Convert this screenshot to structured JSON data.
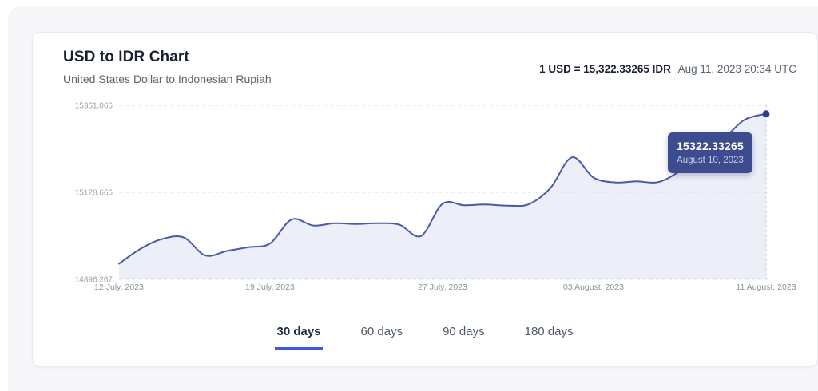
{
  "header": {
    "title": "USD to IDR Chart",
    "subtitle": "United States Dollar to Indonesian Rupiah",
    "rate_bold": "1 USD = 15,322.33265 IDR",
    "rate_date": "Aug 11, 2023 20:34 UTC"
  },
  "tooltip": {
    "value": "15322.33265",
    "date": "August 10, 2023"
  },
  "tabs": [
    {
      "label": "30 days",
      "active": true
    },
    {
      "label": "60 days",
      "active": false
    },
    {
      "label": "90 days",
      "active": false
    },
    {
      "label": "180 days",
      "active": false
    }
  ],
  "chart_data": {
    "type": "area",
    "title": "USD to IDR Chart",
    "series_name": "USD/IDR",
    "x": [
      "2023-07-12",
      "2023-07-13",
      "2023-07-14",
      "2023-07-15",
      "2023-07-16",
      "2023-07-17",
      "2023-07-18",
      "2023-07-19",
      "2023-07-20",
      "2023-07-21",
      "2023-07-22",
      "2023-07-23",
      "2023-07-24",
      "2023-07-25",
      "2023-07-26",
      "2023-07-27",
      "2023-07-28",
      "2023-07-29",
      "2023-07-30",
      "2023-07-31",
      "2023-08-01",
      "2023-08-02",
      "2023-08-03",
      "2023-08-04",
      "2023-08-05",
      "2023-08-06",
      "2023-08-07",
      "2023-08-08",
      "2023-08-09",
      "2023-08-10",
      "2023-08-11"
    ],
    "values": [
      14938,
      14978,
      15004,
      15008,
      14960,
      14972,
      14982,
      14992,
      15056,
      15040,
      15046,
      15044,
      15046,
      15042,
      15012,
      15098,
      15094,
      15096,
      15093,
      15097,
      15140,
      15222,
      15168,
      15155,
      15158,
      15156,
      15185,
      15228,
      15270,
      15322.33265,
      15338
    ],
    "ylim": [
      14896.267,
      15361.066
    ],
    "yticks": [
      {
        "value": 15361.066,
        "label": "15361.066"
      },
      {
        "value": 15128.666,
        "label": "15128.666"
      },
      {
        "value": 14896.267,
        "label": "14896.267"
      }
    ],
    "xticks": [
      {
        "index": 0,
        "label": "12 July, 2023"
      },
      {
        "index": 7,
        "label": "19 July, 2023"
      },
      {
        "index": 15,
        "label": "27 July, 2023"
      },
      {
        "index": 22,
        "label": "03 August, 2023"
      },
      {
        "index": 30,
        "label": "11 August, 2023"
      }
    ],
    "grid": true,
    "legend": "none",
    "colors": {
      "line": "#4a5aa5",
      "fill": "#edeff8",
      "dot": "#2e3f8f",
      "grid": "#d9dce3",
      "vline": "#c6cbd5",
      "tooltip_bg": "#3d4c8e",
      "active_tab_underline": "#3a5be0"
    }
  }
}
